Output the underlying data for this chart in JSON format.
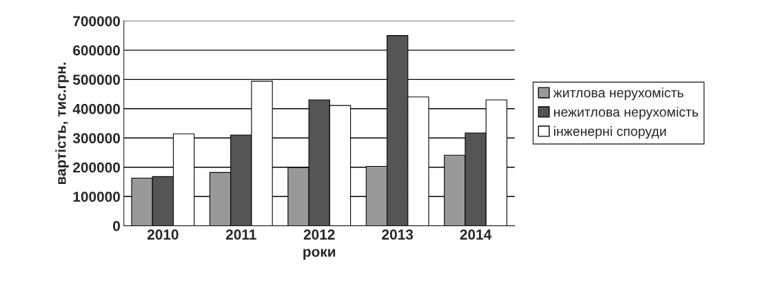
{
  "chart_data": {
    "type": "bar",
    "xlabel": "роки",
    "ylabel": "вартість, тис.грн.",
    "categories": [
      "2010",
      "2011",
      "2012",
      "2013",
      "2014"
    ],
    "series": [
      {
        "name": "житлова нерухомість",
        "color": "#999999",
        "values": [
          163000,
          182000,
          199000,
          203000,
          241000
        ]
      },
      {
        "name": "нежитлова нерухомість",
        "color": "#555555",
        "values": [
          168000,
          310000,
          430000,
          650000,
          317000
        ]
      },
      {
        "name": "інженерні споруди",
        "color": "#ffffff",
        "values": [
          314000,
          494000,
          411000,
          440000,
          430000
        ]
      }
    ],
    "ylim": [
      0,
      700000
    ],
    "yticks": [
      0,
      100000,
      200000,
      300000,
      400000,
      500000,
      600000,
      700000
    ],
    "grid": "y",
    "legend": "right"
  }
}
